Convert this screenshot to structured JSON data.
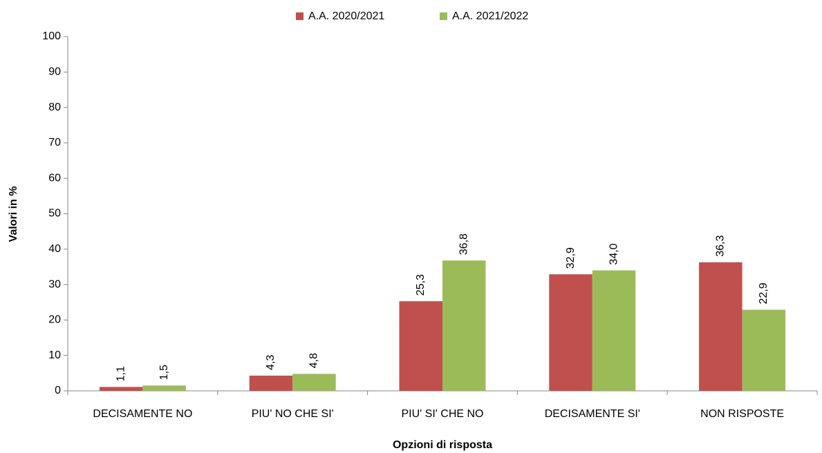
{
  "chart_data": {
    "type": "bar",
    "xlabel": "Opzioni di risposta",
    "ylabel": "Valori in %",
    "categories": [
      "DECISAMENTE NO",
      "PIU' NO CHE SI'",
      "PIU' SI' CHE NO",
      "DECISAMENTE SI'",
      "NON RISPOSTE"
    ],
    "series": [
      {
        "name": "A.A. 2020/2021",
        "color": "#c0504d",
        "values": [
          1.1,
          4.3,
          25.3,
          32.9,
          36.3
        ],
        "value_labels": [
          "1,1",
          "4,3",
          "25,3",
          "32,9",
          "36,3"
        ]
      },
      {
        "name": "A.A. 2021/2022",
        "color": "#9bbb59",
        "values": [
          1.5,
          4.8,
          36.8,
          34.0,
          22.9
        ],
        "value_labels": [
          "1,5",
          "4,8",
          "36,8",
          "34,0",
          "22,9"
        ]
      }
    ],
    "ylim": [
      0,
      100
    ],
    "yticks": [
      0,
      10,
      20,
      30,
      40,
      50,
      60,
      70,
      80,
      90,
      100
    ],
    "legend": "top",
    "grid": false
  }
}
